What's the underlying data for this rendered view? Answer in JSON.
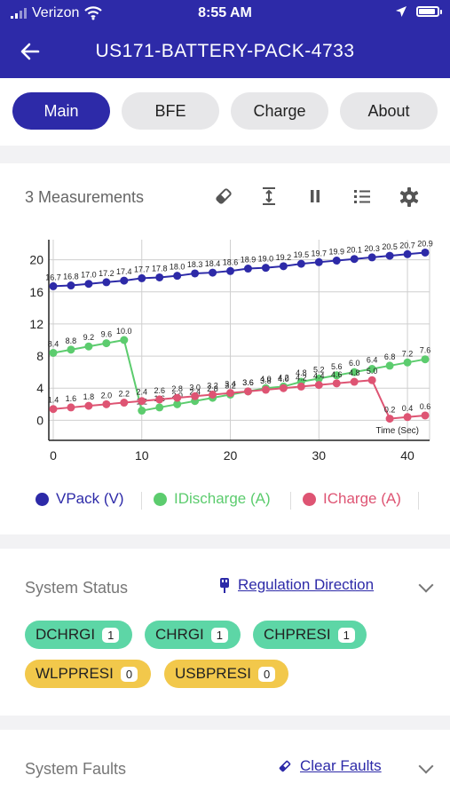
{
  "status_bar": {
    "carrier": "Verizon",
    "time": "8:55 AM"
  },
  "header": {
    "title": "US171-BATTERY-PACK-4733"
  },
  "tabs": [
    {
      "label": "Main",
      "active": true
    },
    {
      "label": "BFE"
    },
    {
      "label": "Charge"
    },
    {
      "label": "About"
    }
  ],
  "measurements": {
    "title": "3 Measurements"
  },
  "icons": [
    "eraser-icon",
    "fit-vertical-icon",
    "pause-icon",
    "list-icon",
    "gear-icon"
  ],
  "chart_data": {
    "type": "line",
    "xlabel": "Time (Sec)",
    "xlim": [
      -0.5,
      42.5
    ],
    "ylim": [
      -2.5,
      22.5
    ],
    "x_ticks": [
      0,
      10,
      20,
      30,
      40
    ],
    "y_ticks": [
      0,
      4,
      8,
      12,
      16,
      20
    ],
    "series": [
      {
        "name": "VPack (V)",
        "color": "#2d2aa8",
        "x": [
          0,
          2,
          4,
          6,
          8,
          10,
          12,
          14,
          16,
          18,
          20,
          22,
          24,
          26,
          28,
          30,
          32,
          34,
          36,
          38,
          40,
          42
        ],
        "values": [
          16.7,
          16.8,
          17.0,
          17.2,
          17.4,
          17.7,
          17.8,
          18.0,
          18.3,
          18.4,
          18.6,
          18.9,
          19.0,
          19.2,
          19.5,
          19.7,
          19.9,
          20.1,
          20.3,
          20.5,
          20.7,
          20.9
        ]
      },
      {
        "name": "IDischarge (A)",
        "color": "#5ccc6e",
        "x": [
          0,
          2,
          4,
          6,
          8,
          10,
          12,
          14,
          16,
          18,
          20,
          22,
          24,
          26,
          28,
          30,
          32,
          34,
          36,
          38,
          40,
          42
        ],
        "values": [
          8.4,
          8.8,
          9.2,
          9.6,
          10.0,
          1.2,
          1.6,
          2.0,
          2.4,
          2.8,
          3.2,
          3.6,
          4.0,
          4.2,
          4.8,
          5.2,
          5.6,
          6.0,
          6.4,
          6.8,
          7.2,
          7.6
        ]
      },
      {
        "name": "ICharge (A)",
        "color": "#de5473",
        "x": [
          0,
          2,
          4,
          6,
          8,
          10,
          12,
          14,
          16,
          18,
          20,
          22,
          24,
          26,
          28,
          30,
          32,
          34,
          36,
          38,
          40,
          42
        ],
        "values": [
          1.4,
          1.6,
          1.8,
          2.0,
          2.2,
          2.4,
          2.6,
          2.8,
          3.0,
          3.2,
          3.4,
          3.6,
          3.8,
          4.0,
          4.2,
          4.4,
          4.6,
          4.8,
          5.0,
          0.2,
          0.4,
          0.6
        ]
      }
    ]
  },
  "legend": [
    {
      "label": "VPack (V)",
      "color": "#2d2aa8",
      "text_color": "#2d2aa8"
    },
    {
      "label": "IDischarge (A)",
      "color": "#5ccc6e",
      "text_color": "#5ccc6e"
    },
    {
      "label": "ICharge (A)",
      "color": "#de5473",
      "text_color": "#de5473"
    }
  ],
  "system_status": {
    "title": "System Status",
    "link": "Regulation Direction",
    "badges": [
      {
        "label": "DCHRGI",
        "count": "1",
        "color": "green"
      },
      {
        "label": "CHRGI",
        "count": "1",
        "color": "green"
      },
      {
        "label": "CHPRESI",
        "count": "1",
        "color": "green"
      },
      {
        "label": "WLPPRESI",
        "count": "0",
        "color": "yellow"
      },
      {
        "label": "USBPRESI",
        "count": "0",
        "color": "yellow"
      }
    ]
  },
  "system_faults": {
    "title": "System Faults",
    "link": "Clear Faults"
  }
}
